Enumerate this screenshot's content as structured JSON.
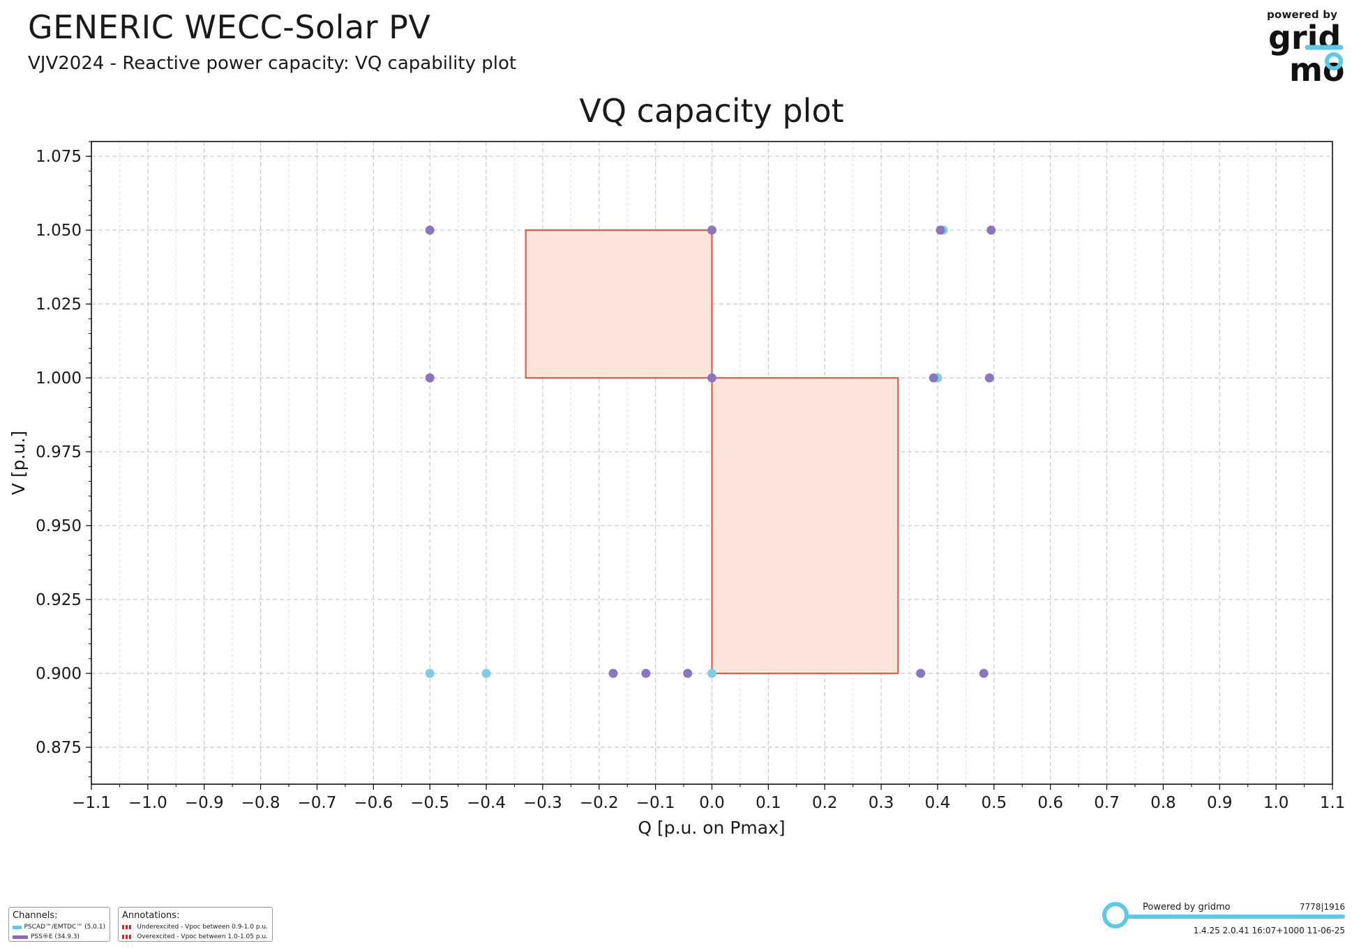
{
  "header": {
    "title": "GENERIC WECC-Solar PV",
    "subtitle": "VJV2024 - Reactive power capacity: VQ capability plot"
  },
  "logo": {
    "powered_by": "powered by",
    "brand_top": "grid",
    "brand_bottom": "mo",
    "brand_color": "#5ec8e8"
  },
  "chart_data": {
    "type": "scatter",
    "title": "VQ capacity plot",
    "xlabel": "Q [p.u. on Pmax]",
    "ylabel": "V [p.u.]",
    "xlim": [
      -1.1,
      1.1
    ],
    "ylim": [
      0.8625,
      1.08
    ],
    "x_ticks": [
      -1.1,
      -1.0,
      -0.9,
      -0.8,
      -0.7,
      -0.6,
      -0.5,
      -0.4,
      -0.3,
      -0.2,
      -0.1,
      0.0,
      0.1,
      0.2,
      0.3,
      0.4,
      0.5,
      0.6,
      0.7,
      0.8,
      0.9,
      1.0,
      1.1
    ],
    "x_tick_labels": [
      "−1.1",
      "−1.0",
      "−0.9",
      "−0.8",
      "−0.7",
      "−0.6",
      "−0.5",
      "−0.4",
      "−0.3",
      "−0.2",
      "−0.1",
      "0.0",
      "0.1",
      "0.2",
      "0.3",
      "0.4",
      "0.5",
      "0.6",
      "0.7",
      "0.8",
      "0.9",
      "1.0",
      "1.1"
    ],
    "y_ticks": [
      0.875,
      0.9,
      0.925,
      0.95,
      0.975,
      1.0,
      1.025,
      1.05,
      1.075
    ],
    "y_tick_labels": [
      "0.875",
      "0.900",
      "0.925",
      "0.950",
      "0.975",
      "1.000",
      "1.025",
      "1.050",
      "1.075"
    ],
    "grid": true,
    "regions": [
      {
        "type": "rectangle",
        "q": [
          -0.33,
          0.0
        ],
        "v": [
          1.0,
          1.05
        ],
        "fill": "#fbe5db",
        "stroke": "#d8604a"
      },
      {
        "type": "rectangle",
        "q": [
          0.0,
          0.33
        ],
        "v": [
          0.9,
          1.0
        ],
        "fill": "#fbe5db",
        "stroke": "#d8604a"
      }
    ],
    "series": [
      {
        "color": "#7fcce4",
        "points": [
          {
            "x": 0.41,
            "y": 1.05
          },
          {
            "x": 0.4,
            "y": 1.0
          },
          {
            "x": -0.5,
            "y": 0.9
          },
          {
            "x": -0.4,
            "y": 0.9
          },
          {
            "x": 0.0,
            "y": 0.9
          }
        ]
      },
      {
        "color": "#8a76bd",
        "points": [
          {
            "x": -0.5,
            "y": 1.05
          },
          {
            "x": 0.0,
            "y": 1.05
          },
          {
            "x": 0.405,
            "y": 1.05
          },
          {
            "x": 0.495,
            "y": 1.05
          },
          {
            "x": -0.5,
            "y": 1.0
          },
          {
            "x": 0.0,
            "y": 1.0
          },
          {
            "x": 0.393,
            "y": 1.0
          },
          {
            "x": 0.492,
            "y": 1.0
          },
          {
            "x": -0.175,
            "y": 0.9
          },
          {
            "x": -0.117,
            "y": 0.9
          },
          {
            "x": -0.043,
            "y": 0.9
          },
          {
            "x": 0.37,
            "y": 0.9
          },
          {
            "x": 0.482,
            "y": 0.9
          }
        ]
      }
    ]
  },
  "legend": {
    "channels_title": "Channels:",
    "channels": [
      {
        "label": "PSCAD™/EMTDC™ (5.0.1)",
        "color": "#5ec8e8"
      },
      {
        "label": "PSS®E (34.9.3)",
        "color": "#8a68b8"
      }
    ],
    "annotations_title": "Annotations:",
    "annotations": [
      {
        "label": "Underexcited - Vpoc between 0.9-1.0 p.u.",
        "color": "#e02020"
      },
      {
        "label": "Overexcited - Vpoc between 1.0-1.05 p.u.",
        "color": "#e02020"
      }
    ]
  },
  "footer": {
    "brand": "Powered by gridmo",
    "code": "7778|1916",
    "version": "1.4.25  2.0.41  16:07+1000 11-06-25"
  }
}
